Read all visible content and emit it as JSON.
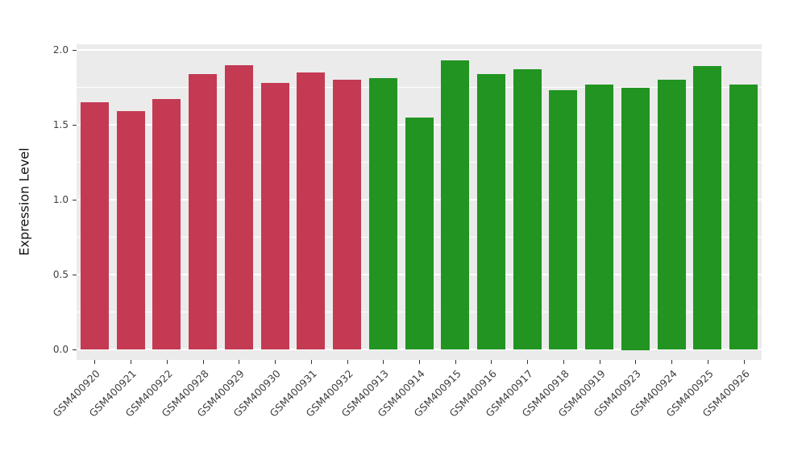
{
  "chart_data": {
    "type": "bar",
    "title": "",
    "xlabel": "",
    "ylabel": "Expression Level",
    "ylim": [
      0,
      2.0
    ],
    "yticks": [
      0.0,
      0.5,
      1.0,
      1.5,
      2.0
    ],
    "ytick_labels": [
      "0.0",
      "0.5",
      "1.0",
      "1.5",
      "2.0"
    ],
    "minor_yticks": [
      0.25,
      0.75,
      1.25,
      1.75
    ],
    "grid": "on",
    "legend": "none",
    "categories": [
      "GSM400920",
      "GSM400921",
      "GSM400922",
      "GSM400928",
      "GSM400929",
      "GSM400930",
      "GSM400931",
      "GSM400932",
      "GSM400913",
      "GSM400914",
      "GSM400915",
      "GSM400916",
      "GSM400917",
      "GSM400918",
      "GSM400919",
      "GSM400923",
      "GSM400924",
      "GSM400925",
      "GSM400926"
    ],
    "values": [
      1.65,
      1.59,
      1.67,
      1.84,
      1.9,
      1.78,
      1.85,
      1.8,
      1.81,
      1.55,
      1.93,
      1.84,
      1.87,
      1.73,
      1.77,
      1.75,
      1.8,
      1.89,
      1.77
    ],
    "groups": [
      "red",
      "red",
      "red",
      "red",
      "red",
      "red",
      "red",
      "red",
      "green",
      "green",
      "green",
      "green",
      "green",
      "green",
      "green",
      "green",
      "green",
      "green",
      "green"
    ],
    "palette": {
      "red": "#C43A53",
      "green": "#219421"
    },
    "panel_background": "#EBEBEB",
    "gridline_color": "#FFFFFF"
  }
}
